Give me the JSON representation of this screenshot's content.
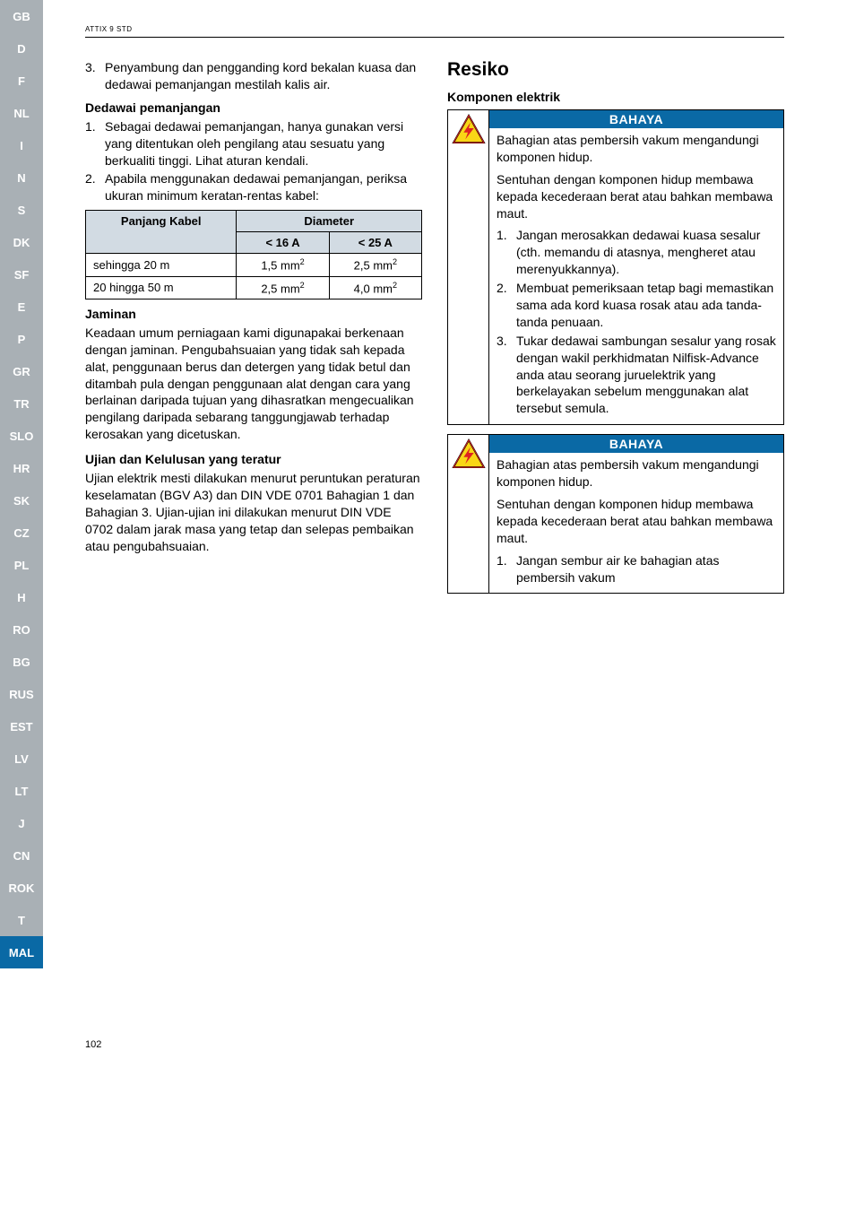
{
  "sidebar": {
    "tabs": [
      "GB",
      "D",
      "F",
      "NL",
      "I",
      "N",
      "S",
      "DK",
      "SF",
      "E",
      "P",
      "GR",
      "TR",
      "SLO",
      "HR",
      "SK",
      "CZ",
      "PL",
      "H",
      "RO",
      "BG",
      "RUS",
      "EST",
      "LV",
      "LT",
      "J",
      "CN",
      "ROK",
      "T",
      "MAL"
    ],
    "active": "MAL",
    "dim_color": "#a9b0b5",
    "active_color": "#0a69a5",
    "text_color": "#ffffff"
  },
  "header": {
    "model": "ATTIX 9 STD"
  },
  "left_col": {
    "intro_item": {
      "num": "3.",
      "text": "Penyambung dan pengganding kord bekalan kuasa dan dedawai pemanjangan mestilah kalis air."
    },
    "sec1_head": "Dedawai pemanjangan",
    "sec1_items": [
      {
        "num": "1.",
        "text": "Sebagai dedawai pemanjangan, hanya gunakan versi yang ditentukan oleh pengilang atau sesuatu yang berkualiti tinggi. Lihat aturan kendali."
      },
      {
        "num": "2.",
        "text": "Apabila menggunakan dedawai pemanjangan, periksa ukuran minimum keratan-rentas kabel:"
      }
    ],
    "table": {
      "head_cable": "Panjang Kabel",
      "head_diam": "Diameter",
      "sub_a": "< 16 A",
      "sub_b": "< 25 A",
      "rows": [
        {
          "label": "sehingga  20 m",
          "a": "1,5 mm",
          "b": "2,5 mm"
        },
        {
          "label": "20 hingga  50 m",
          "a": "2,5 mm",
          "b": "4,0 mm"
        }
      ],
      "header_bg": "#d2dbe3"
    },
    "sec2_head": "Jaminan",
    "sec2_body": "Keadaan umum perniagaan kami digunapakai berkenaan dengan jaminan. Pengubahsuaian yang tidak sah kepada alat, penggunaan berus dan detergen yang tidak betul dan ditambah pula dengan penggunaan alat dengan cara yang berlainan daripada tujuan yang dihasratkan mengecualikan pengilang daripada sebarang tanggungjawab terhadap kerosakan yang dicetuskan.",
    "sec3_head": "Ujian dan Kelulusan yang teratur",
    "sec3_body": "Ujian elektrik mesti dilakukan menurut peruntukan peraturan keselamatan (BGV A3) dan DIN VDE 0701 Bahagian 1 dan Bahagian 3. Ujian-ujian ini dilakukan menurut DIN VDE 0702 dalam jarak masa yang tetap dan selepas pembaikan atau pengubahsuaian."
  },
  "right_col": {
    "title": "Resiko",
    "subtitle": "Komponen elektrik",
    "warn1": {
      "header": "BAHAYA",
      "p1": "Bahagian atas pembersih vakum mengandungi komponen hidup.",
      "p2": "Sentuhan dengan komponen hidup membawa kepada kecederaan berat atau bahkan membawa maut.",
      "items": [
        {
          "num": "1.",
          "text": "Jangan merosakkan dedawai kuasa sesalur (cth. memandu di atasnya, mengheret atau merenyukkannya)."
        },
        {
          "num": "2.",
          "text": " Membuat pemeriksaan tetap bagi memastikan sama ada kord kuasa rosak atau ada tanda-tanda penuaan."
        },
        {
          "num": "3.",
          "text": " Tukar dedawai sambungan sesalur yang rosak dengan wakil perkhidmatan Nilfisk-Advance anda atau seorang juruelektrik yang berkelayakan sebelum menggunakan alat tersebut semula."
        }
      ]
    },
    "warn2": {
      "header": "BAHAYA",
      "p1": "Bahagian atas pembersih vakum mengandungi komponen hidup.",
      "p2": "Sentuhan dengan komponen hidup membawa kepada kecederaan berat atau bahkan membawa maut.",
      "items": [
        {
          "num": "1.",
          "text": "Jangan sembur air ke bahagian atas pembersih vakum"
        }
      ]
    }
  },
  "page_number": "102",
  "colors": {
    "accent": "#0a69a5",
    "icon_yellow": "#f9d616"
  }
}
